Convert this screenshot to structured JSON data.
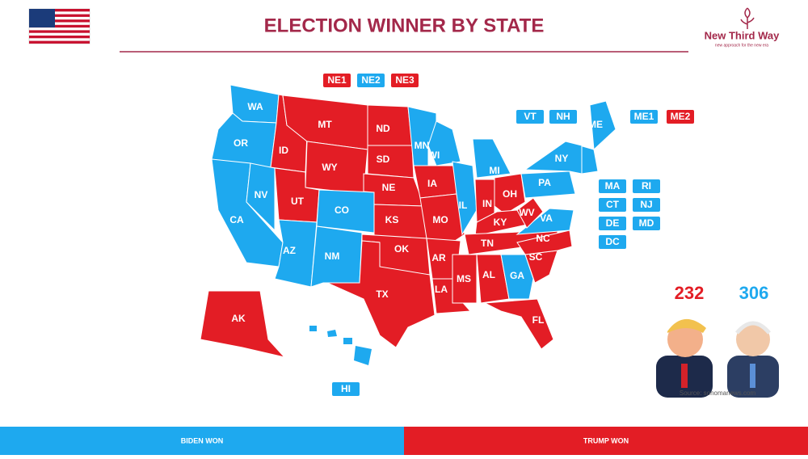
{
  "header": {
    "title": "ELECTION WINNER BY STATE",
    "logo": {
      "name": "New Third Way",
      "tagline": "new approach for the new era"
    }
  },
  "map": {
    "states": [
      {
        "label": "WA",
        "color": "#1ea9ef"
      },
      {
        "label": "OR",
        "color": "#1ea9ef"
      },
      {
        "label": "CA",
        "color": "#1ea9ef"
      },
      {
        "label": "NV",
        "color": "#1ea9ef"
      },
      {
        "label": "ID",
        "color": "#e31d25"
      },
      {
        "label": "MT",
        "color": "#e31d25"
      },
      {
        "label": "WY",
        "color": "#e31d25"
      },
      {
        "label": "UT",
        "color": "#e31d25"
      },
      {
        "label": "AZ",
        "color": "#1ea9ef"
      },
      {
        "label": "CO",
        "color": "#1ea9ef"
      },
      {
        "label": "NM",
        "color": "#1ea9ef"
      },
      {
        "label": "ND",
        "color": "#e31d25"
      },
      {
        "label": "SD",
        "color": "#e31d25"
      },
      {
        "label": "NE",
        "color": "#e31d25"
      },
      {
        "label": "KS",
        "color": "#e31d25"
      },
      {
        "label": "OK",
        "color": "#e31d25"
      },
      {
        "label": "TX",
        "color": "#e31d25"
      },
      {
        "label": "MN",
        "color": "#1ea9ef"
      },
      {
        "label": "IA",
        "color": "#e31d25"
      },
      {
        "label": "MO",
        "color": "#e31d25"
      },
      {
        "label": "AR",
        "color": "#e31d25"
      },
      {
        "label": "LA",
        "color": "#e31d25"
      },
      {
        "label": "WI",
        "color": "#1ea9ef"
      },
      {
        "label": "IL",
        "color": "#1ea9ef"
      },
      {
        "label": "MI",
        "color": "#1ea9ef"
      },
      {
        "label": "IN",
        "color": "#e31d25"
      },
      {
        "label": "OH",
        "color": "#e31d25"
      },
      {
        "label": "KY",
        "color": "#e31d25"
      },
      {
        "label": "TN",
        "color": "#e31d25"
      },
      {
        "label": "MS",
        "color": "#e31d25"
      },
      {
        "label": "AL",
        "color": "#e31d25"
      },
      {
        "label": "GA",
        "color": "#1ea9ef"
      },
      {
        "label": "FL",
        "color": "#e31d25"
      },
      {
        "label": "SC",
        "color": "#e31d25"
      },
      {
        "label": "NC",
        "color": "#e31d25"
      },
      {
        "label": "VA",
        "color": "#1ea9ef"
      },
      {
        "label": "WV",
        "color": "#e31d25"
      },
      {
        "label": "PA",
        "color": "#1ea9ef"
      },
      {
        "label": "NY",
        "color": "#1ea9ef"
      },
      {
        "label": "ME",
        "color": "#1ea9ef"
      },
      {
        "label": "AK",
        "color": "#e31d25"
      }
    ],
    "boxes": [
      {
        "label": "NE1",
        "color": "#e31d25"
      },
      {
        "label": "NE2",
        "color": "#1ea9ef"
      },
      {
        "label": "NE3",
        "color": "#e31d25"
      },
      {
        "label": "VT",
        "color": "#1ea9ef"
      },
      {
        "label": "NH",
        "color": "#1ea9ef"
      },
      {
        "label": "ME1",
        "color": "#1ea9ef"
      },
      {
        "label": "ME2",
        "color": "#e31d25"
      },
      {
        "label": "MA",
        "color": "#1ea9ef"
      },
      {
        "label": "RI",
        "color": "#1ea9ef"
      },
      {
        "label": "CT",
        "color": "#1ea9ef"
      },
      {
        "label": "NJ",
        "color": "#1ea9ef"
      },
      {
        "label": "DE",
        "color": "#1ea9ef"
      },
      {
        "label": "MD",
        "color": "#1ea9ef"
      },
      {
        "label": "DC",
        "color": "#1ea9ef"
      },
      {
        "label": "HI",
        "color": "#1ea9ef"
      }
    ]
  },
  "results": [
    {
      "votes": 232,
      "color": "#e31d25"
    },
    {
      "votes": 306,
      "color": "#1ea9ef"
    }
  ],
  "source": "Source: sonomanews.com",
  "footer": [
    {
      "label": "BIDEN WON",
      "color": "#1ea9ef"
    },
    {
      "label": "TRUMP WON",
      "color": "#e31d25"
    }
  ]
}
